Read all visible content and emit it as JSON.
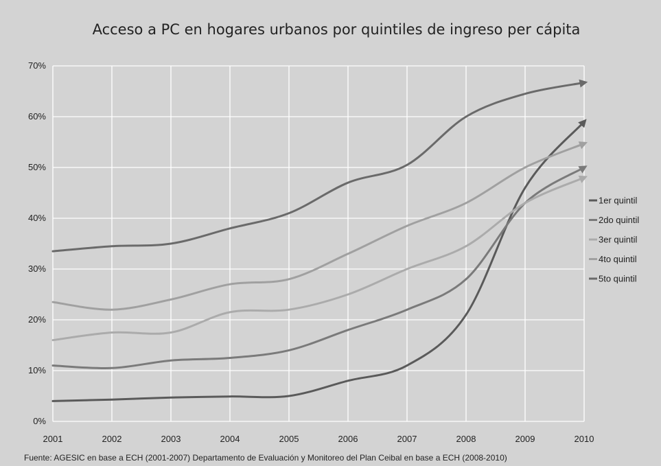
{
  "chart_data": {
    "type": "line",
    "title": "Acceso a PC en hogares urbanos por quintiles de ingreso per cápita",
    "xlabel": "",
    "ylabel": "",
    "x": [
      "2001",
      "2002",
      "2003",
      "2004",
      "2005",
      "2006",
      "2007",
      "2008",
      "2009",
      "2010"
    ],
    "ylim": [
      0,
      70
    ],
    "yticks": [
      0,
      10,
      20,
      30,
      40,
      50,
      60,
      70
    ],
    "ytick_labels": [
      "0%",
      "10%",
      "20%",
      "30%",
      "40%",
      "50%",
      "60%",
      "70%"
    ],
    "grid": true,
    "legend_position": "right",
    "line_end_markers": "arrow",
    "series": [
      {
        "name": "1er quintil",
        "color": "#5a5a5a",
        "values": [
          4,
          4.3,
          4.7,
          4.9,
          5,
          8,
          11,
          21,
          46,
          59
        ]
      },
      {
        "name": "2do quintil",
        "color": "#7a7a7a",
        "values": [
          11,
          10.5,
          12,
          12.5,
          14,
          18,
          22,
          28,
          43,
          50
        ]
      },
      {
        "name": "3er quintil",
        "color": "#ababab",
        "values": [
          16,
          17.5,
          17.5,
          21.5,
          22,
          25,
          30,
          34.5,
          43,
          48
        ]
      },
      {
        "name": "4to quintil",
        "color": "#a0a0a0",
        "values": [
          23.5,
          22,
          24,
          27,
          28,
          33,
          38.5,
          43,
          50,
          54.7
        ]
      },
      {
        "name": "5to quintil",
        "color": "#6a6a6a",
        "values": [
          33.5,
          34.5,
          35,
          38,
          41,
          47,
          50.5,
          60,
          64.5,
          66.7
        ]
      }
    ],
    "source": "Fuente:  AGESIC en base a ECH (2001-2007)  Departamento de Evaluación y Monitoreo del Plan Ceibal en base a ECH (2008-2010)"
  }
}
